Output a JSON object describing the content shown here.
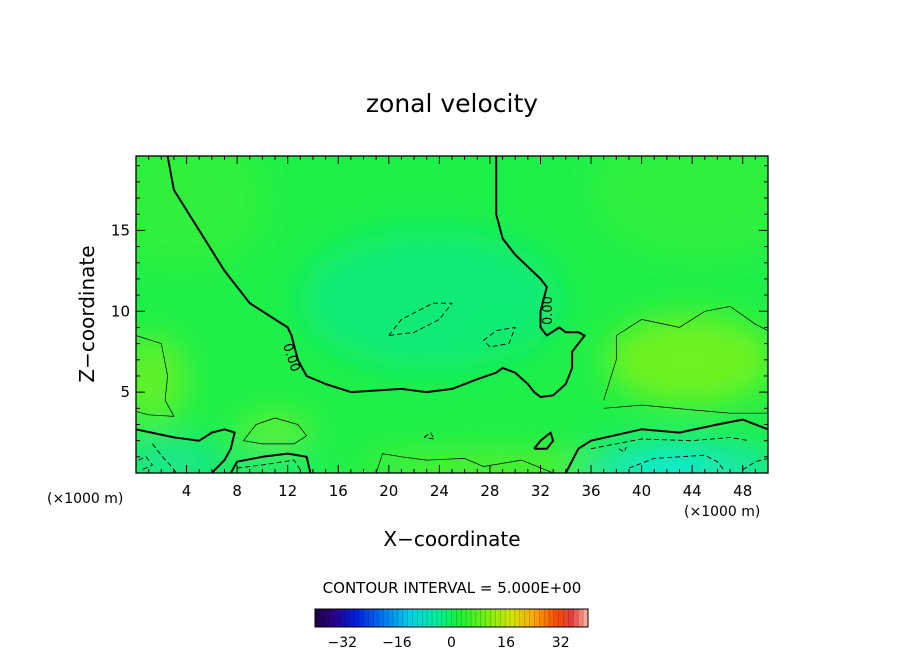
{
  "chart_data": {
    "type": "heatmap",
    "title": "zonal velocity",
    "xlabel": "X−coordinate",
    "ylabel": "Z−coordinate",
    "x_unit": "(×1000 m)",
    "y_unit": "(×1000 m)",
    "xlim": [
      0,
      50
    ],
    "ylim": [
      0,
      19.6
    ],
    "x_ticks": [
      4,
      8,
      12,
      16,
      20,
      24,
      28,
      32,
      36,
      40,
      44,
      48
    ],
    "x_tick_labels": [
      "4",
      "8",
      "12",
      "16",
      "20",
      "24",
      "28",
      "32",
      "36",
      "40",
      "44",
      "48"
    ],
    "y_ticks": [
      5,
      10,
      15
    ],
    "y_tick_labels": [
      "5",
      "10",
      "15"
    ],
    "contour_interval_text": "CONTOUR INTERVAL = 5.000E+00",
    "zero_contour_labels": [
      "0.00",
      "0.00"
    ],
    "colorbar": {
      "range": [
        -40,
        40
      ],
      "ticks": [
        -32,
        -16,
        0,
        16,
        32
      ],
      "tick_labels": [
        "−32",
        "−16",
        "0",
        "16",
        "32"
      ],
      "n_colors": 56
    },
    "zero_contours": [
      [
        [
          2.5,
          19.6
        ],
        [
          3,
          17.5
        ],
        [
          5,
          15
        ],
        [
          7,
          12.5
        ],
        [
          9,
          10.5
        ],
        [
          11,
          9.5
        ],
        [
          12,
          9
        ],
        [
          12.3,
          8.5
        ],
        [
          12.8,
          7
        ],
        [
          13.5,
          6
        ],
        [
          15,
          5.5
        ],
        [
          17,
          5
        ],
        [
          19,
          5.1
        ],
        [
          21,
          5.2
        ],
        [
          23,
          5
        ],
        [
          25,
          5.2
        ],
        [
          27,
          5.8
        ],
        [
          28.5,
          6.2
        ],
        [
          29,
          6.5
        ],
        [
          30,
          6.2
        ],
        [
          31,
          5.5
        ],
        [
          31.5,
          5
        ],
        [
          32,
          4.7
        ],
        [
          33,
          4.8
        ],
        [
          34,
          5.5
        ],
        [
          34.5,
          6.5
        ],
        [
          34.5,
          7.5
        ],
        [
          35,
          8
        ],
        [
          35.5,
          8.5
        ],
        [
          35,
          8.7
        ],
        [
          34,
          8.7
        ],
        [
          33.5,
          9
        ],
        [
          32.5,
          8.5
        ],
        [
          32,
          9
        ],
        [
          32,
          10
        ],
        [
          32.5,
          11.5
        ],
        [
          32,
          12
        ],
        [
          30,
          13.5
        ],
        [
          29,
          14.5
        ],
        [
          28.5,
          16
        ],
        [
          28.5,
          19.6
        ]
      ],
      [
        [
          0,
          2.7
        ],
        [
          3,
          2.2
        ],
        [
          5,
          2
        ],
        [
          6,
          2.5
        ],
        [
          7,
          2.7
        ],
        [
          7.8,
          2.5
        ],
        [
          7.5,
          1.5
        ],
        [
          7,
          0.8
        ],
        [
          6,
          0
        ]
      ],
      [
        [
          7.5,
          0
        ],
        [
          8,
          0.7
        ],
        [
          10,
          1
        ],
        [
          12,
          1.2
        ],
        [
          13.5,
          1
        ],
        [
          13.8,
          0
        ]
      ],
      [
        [
          31.5,
          1.5
        ],
        [
          32,
          2
        ],
        [
          32.8,
          2.5
        ],
        [
          33,
          2
        ],
        [
          32.5,
          1.5
        ],
        [
          31.5,
          1.5
        ]
      ],
      [
        [
          34,
          0
        ],
        [
          35,
          1.5
        ],
        [
          36,
          2
        ],
        [
          40,
          2.7
        ],
        [
          43,
          2.5
        ],
        [
          46,
          3
        ],
        [
          48,
          3.3
        ],
        [
          50,
          2.7
        ]
      ]
    ],
    "positive_contours": [
      [
        [
          0,
          8.5
        ],
        [
          2,
          8
        ],
        [
          2.5,
          6
        ],
        [
          2.3,
          4.5
        ],
        [
          3,
          3.5
        ],
        [
          1,
          3.6
        ],
        [
          0,
          3.8
        ]
      ],
      [
        [
          8.5,
          2
        ],
        [
          9.5,
          3
        ],
        [
          11,
          3.4
        ],
        [
          12.8,
          3
        ],
        [
          13.5,
          2.3
        ],
        [
          12.5,
          1.8
        ],
        [
          10,
          1.8
        ],
        [
          8.5,
          2
        ]
      ],
      [
        [
          37,
          4.5
        ],
        [
          38,
          7
        ],
        [
          38,
          8.5
        ],
        [
          40,
          9.5
        ],
        [
          43,
          9
        ],
        [
          45,
          10
        ],
        [
          47,
          10.3
        ],
        [
          49,
          9.2
        ],
        [
          50,
          8.8
        ]
      ],
      [
        [
          37,
          4
        ],
        [
          40,
          4.2
        ],
        [
          44,
          3.9
        ],
        [
          47,
          3.7
        ],
        [
          50,
          3.7
        ]
      ],
      [
        [
          19,
          0
        ],
        [
          19.5,
          1.2
        ],
        [
          21,
          1
        ],
        [
          23,
          0.8
        ],
        [
          26,
          0.9
        ],
        [
          27.5,
          0.4
        ],
        [
          30.5,
          0.8
        ],
        [
          33,
          0
        ]
      ]
    ],
    "negative_contours": [
      [
        [
          20,
          8.5
        ],
        [
          21,
          9.5
        ],
        [
          23.5,
          10.5
        ],
        [
          25,
          10.5
        ],
        [
          24,
          9.5
        ],
        [
          22,
          8.7
        ],
        [
          20,
          8.5
        ]
      ],
      [
        [
          27.5,
          8.2
        ],
        [
          28.5,
          8.8
        ],
        [
          30,
          9
        ],
        [
          29.5,
          8
        ],
        [
          28,
          7.8
        ],
        [
          27.5,
          8.2
        ]
      ],
      [
        [
          0.2,
          0.8
        ],
        [
          0.8,
          1
        ],
        [
          1.3,
          0.5
        ],
        [
          0.5,
          0.2
        ]
      ],
      [
        [
          1.3,
          1.8
        ],
        [
          2.2,
          0.9
        ],
        [
          2.7,
          0.5
        ],
        [
          3.2,
          0
        ]
      ],
      [
        [
          8,
          0.3
        ],
        [
          10,
          0.5
        ],
        [
          12.5,
          0.8
        ],
        [
          13,
          0.2
        ]
      ],
      [
        [
          22.8,
          2.2
        ],
        [
          23.3,
          2.5
        ],
        [
          23.6,
          2.1
        ],
        [
          22.8,
          2.2
        ]
      ],
      [
        [
          36,
          1.5
        ],
        [
          40,
          2.1
        ],
        [
          44,
          2
        ],
        [
          47,
          2.2
        ],
        [
          48.5,
          2
        ]
      ],
      [
        [
          38.2,
          1.5
        ],
        [
          38.6,
          1.3
        ],
        [
          38.8,
          1.6
        ]
      ],
      [
        [
          39,
          0.3
        ],
        [
          41,
          0.9
        ],
        [
          43,
          1
        ],
        [
          45,
          1.1
        ],
        [
          46,
          0.7
        ],
        [
          46.5,
          0.2
        ]
      ],
      [
        [
          48,
          0.2
        ],
        [
          49,
          0.7
        ],
        [
          50,
          0.9
        ]
      ]
    ]
  }
}
